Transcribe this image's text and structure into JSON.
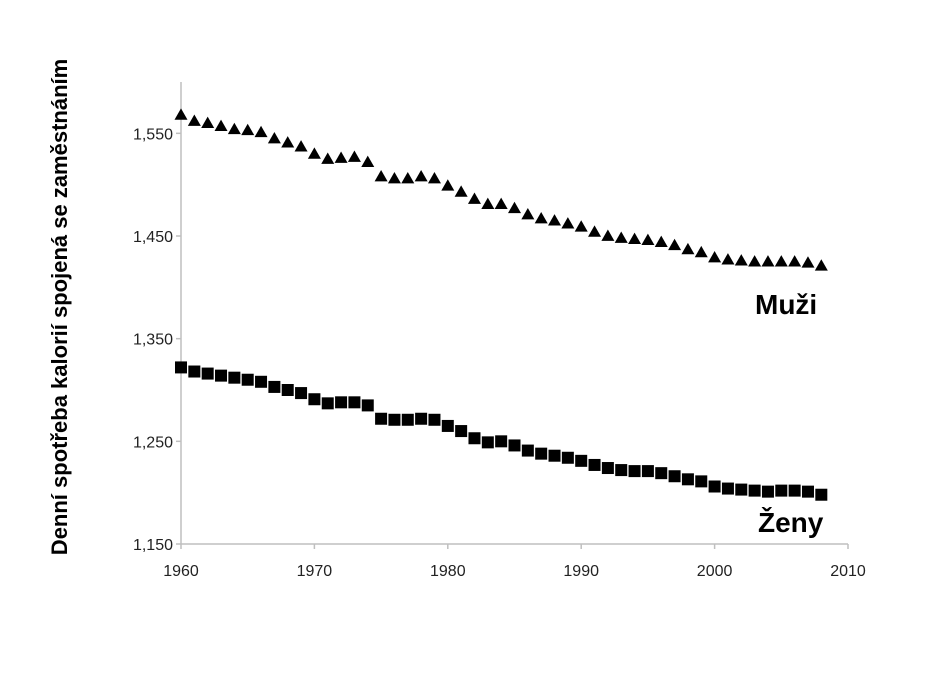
{
  "chart_data": {
    "type": "scatter",
    "title": "",
    "xlabel": "",
    "ylabel": "Denní spotřeba kalorií spojená se zaměstnáním",
    "xlim": [
      1960,
      2010
    ],
    "ylim": [
      1150,
      1600
    ],
    "x_ticks": [
      "1960",
      "1970",
      "1980",
      "1990",
      "2000",
      "2010"
    ],
    "y_ticks": [
      "1,150",
      "1,250",
      "1,350",
      "1,450",
      "1,550"
    ],
    "grid": false,
    "legend": "none",
    "series": [
      {
        "name": "Muži",
        "marker": "triangle",
        "color": "#000000",
        "x": [
          1960,
          1961,
          1962,
          1963,
          1964,
          1965,
          1966,
          1967,
          1968,
          1969,
          1970,
          1971,
          1972,
          1973,
          1974,
          1975,
          1976,
          1977,
          1978,
          1979,
          1980,
          1981,
          1982,
          1983,
          1984,
          1985,
          1986,
          1987,
          1988,
          1989,
          1990,
          1991,
          1992,
          1993,
          1994,
          1995,
          1996,
          1997,
          1998,
          1999,
          2000,
          2001,
          2002,
          2003,
          2004,
          2005,
          2006,
          2007,
          2008
        ],
        "y": [
          1568,
          1562,
          1560,
          1557,
          1554,
          1553,
          1551,
          1545,
          1541,
          1537,
          1530,
          1525,
          1526,
          1527,
          1522,
          1508,
          1506,
          1506,
          1508,
          1506,
          1499,
          1493,
          1486,
          1481,
          1481,
          1477,
          1471,
          1467,
          1465,
          1462,
          1459,
          1454,
          1450,
          1448,
          1447,
          1446,
          1444,
          1441,
          1437,
          1434,
          1429,
          1427,
          1426,
          1425,
          1425,
          1425,
          1425,
          1424,
          1421
        ]
      },
      {
        "name": "Ženy",
        "marker": "square",
        "color": "#000000",
        "x": [
          1960,
          1961,
          1962,
          1963,
          1964,
          1965,
          1966,
          1967,
          1968,
          1969,
          1970,
          1971,
          1972,
          1973,
          1974,
          1975,
          1976,
          1977,
          1978,
          1979,
          1980,
          1981,
          1982,
          1983,
          1984,
          1985,
          1986,
          1987,
          1988,
          1989,
          1990,
          1991,
          1992,
          1993,
          1994,
          1995,
          1996,
          1997,
          1998,
          1999,
          2000,
          2001,
          2002,
          2003,
          2004,
          2005,
          2006,
          2007,
          2008
        ],
        "y": [
          1322,
          1318,
          1316,
          1314,
          1312,
          1310,
          1308,
          1303,
          1300,
          1297,
          1291,
          1287,
          1288,
          1288,
          1285,
          1272,
          1271,
          1271,
          1272,
          1271,
          1265,
          1260,
          1253,
          1249,
          1250,
          1246,
          1241,
          1238,
          1236,
          1234,
          1231,
          1227,
          1224,
          1222,
          1221,
          1221,
          1219,
          1216,
          1213,
          1211,
          1206,
          1204,
          1203,
          1202,
          1201,
          1202,
          1202,
          1201,
          1198
        ]
      }
    ]
  }
}
